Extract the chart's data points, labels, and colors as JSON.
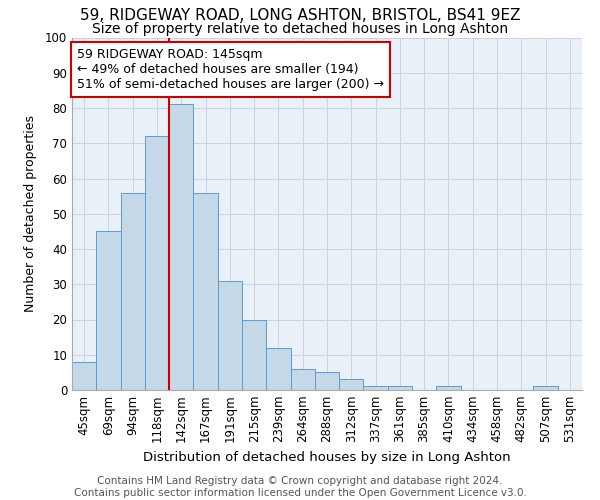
{
  "title1": "59, RIDGEWAY ROAD, LONG ASHTON, BRISTOL, BS41 9EZ",
  "title2": "Size of property relative to detached houses in Long Ashton",
  "xlabel": "Distribution of detached houses by size in Long Ashton",
  "ylabel": "Number of detached properties",
  "footer1": "Contains HM Land Registry data © Crown copyright and database right 2024.",
  "footer2": "Contains public sector information licensed under the Open Government Licence v3.0.",
  "categories": [
    "45sqm",
    "69sqm",
    "94sqm",
    "118sqm",
    "142sqm",
    "167sqm",
    "191sqm",
    "215sqm",
    "239sqm",
    "264sqm",
    "288sqm",
    "312sqm",
    "337sqm",
    "361sqm",
    "385sqm",
    "410sqm",
    "434sqm",
    "458sqm",
    "482sqm",
    "507sqm",
    "531sqm"
  ],
  "values": [
    8,
    45,
    56,
    72,
    81,
    56,
    31,
    20,
    12,
    6,
    5,
    3,
    1,
    1,
    0,
    1,
    0,
    0,
    0,
    1,
    0
  ],
  "bar_color": "#c5d8e8",
  "bar_edge_color": "#5b9bd5",
  "grid_color": "#c8d4e0",
  "background_color": "#eaf0f8",
  "annotation_box_color": "#cc0000",
  "vline_color": "#cc0000",
  "vline_x": 3.5,
  "annotation_text_line1": "59 RIDGEWAY ROAD: 145sqm",
  "annotation_text_line2": "← 49% of detached houses are smaller (194)",
  "annotation_text_line3": "51% of semi-detached houses are larger (200) →",
  "ylim": [
    0,
    100
  ],
  "yticks": [
    0,
    10,
    20,
    30,
    40,
    50,
    60,
    70,
    80,
    90,
    100
  ],
  "title1_fontsize": 11,
  "title2_fontsize": 10,
  "xlabel_fontsize": 9.5,
  "ylabel_fontsize": 9,
  "tick_fontsize": 8.5,
  "annotation_fontsize": 9,
  "footer_fontsize": 7.5
}
